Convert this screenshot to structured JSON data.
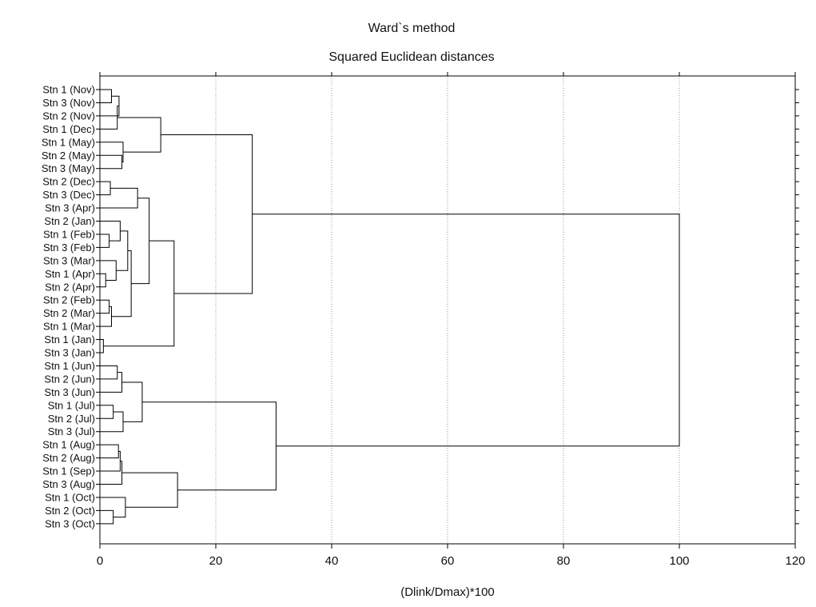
{
  "chart_data": {
    "type": "dendrogram",
    "title": "Ward`s method",
    "subtitle": "Squared Euclidean distances",
    "xlabel": "(Dlink/Dmax)*100",
    "ylabel": "",
    "xlim": [
      0,
      120
    ],
    "xticks": [
      0,
      20,
      40,
      60,
      80,
      100,
      120
    ],
    "grid": "vertical dotted",
    "leaves": [
      "Stn 1 (Nov)",
      "Stn 3 (Nov)",
      "Stn 2 (Nov)",
      "Stn 1 (Dec)",
      "Stn 1 (May)",
      "Stn 2 (May)",
      "Stn 3 (May)",
      "Stn 2 (Dec)",
      "Stn 3 (Dec)",
      "Stn 3 (Apr)",
      "Stn 2 (Jan)",
      "Stn 1 (Feb)",
      "Stn 3 (Feb)",
      "Stn 3 (Mar)",
      "Stn 1 (Apr)",
      "Stn 2 (Apr)",
      "Stn 2 (Feb)",
      "Stn 2 (Mar)",
      "Stn 1 (Mar)",
      "Stn 1 (Jan)",
      "Stn 3 (Jan)",
      "Stn 1 (Jun)",
      "Stn 2 (Jun)",
      "Stn 3 (Jun)",
      "Stn 1 (Jul)",
      "Stn 2 (Jul)",
      "Stn 3 (Jul)",
      "Stn 1 (Aug)",
      "Stn 2 (Aug)",
      "Stn 1 (Sep)",
      "Stn 3 (Aug)",
      "Stn 1 (Oct)",
      "Stn 2 (Oct)",
      "Stn 3 (Oct)"
    ],
    "merges": [
      {
        "id": "a",
        "left": "L0",
        "right": "L1",
        "height": 2.0
      },
      {
        "id": "b",
        "left": "a",
        "right": "L2",
        "height": 3.3
      },
      {
        "id": "c",
        "left": "b",
        "right": "L3",
        "height": 3.0
      },
      {
        "id": "d",
        "left": "L5",
        "right": "L6",
        "height": 3.8
      },
      {
        "id": "e",
        "left": "L4",
        "right": "d",
        "height": 4.0
      },
      {
        "id": "f",
        "left": "c",
        "right": "e",
        "height": 10.5
      },
      {
        "id": "g",
        "left": "L7",
        "right": "L8",
        "height": 1.8
      },
      {
        "id": "h",
        "left": "g",
        "right": "L9",
        "height": 6.5
      },
      {
        "id": "i",
        "left": "L11",
        "right": "L12",
        "height": 1.6
      },
      {
        "id": "j",
        "left": "L10",
        "right": "i",
        "height": 3.5
      },
      {
        "id": "k",
        "left": "L14",
        "right": "L15",
        "height": 1.0
      },
      {
        "id": "l",
        "left": "L13",
        "right": "k",
        "height": 2.8
      },
      {
        "id": "m",
        "left": "j",
        "right": "l",
        "height": 4.8
      },
      {
        "id": "n",
        "left": "L16",
        "right": "L17",
        "height": 1.6
      },
      {
        "id": "o",
        "left": "n",
        "right": "L18",
        "height": 2.0
      },
      {
        "id": "p",
        "left": "m",
        "right": "o",
        "height": 5.4
      },
      {
        "id": "q",
        "left": "h",
        "right": "p",
        "height": 8.5
      },
      {
        "id": "r",
        "left": "L19",
        "right": "L20",
        "height": 0.6
      },
      {
        "id": "s",
        "left": "q",
        "right": "r",
        "height": 12.8
      },
      {
        "id": "t",
        "left": "f",
        "right": "s",
        "height": 26.3
      },
      {
        "id": "u",
        "left": "L21",
        "right": "L22",
        "height": 3.0
      },
      {
        "id": "v",
        "left": "u",
        "right": "L23",
        "height": 3.8
      },
      {
        "id": "w",
        "left": "L24",
        "right": "L25",
        "height": 2.3
      },
      {
        "id": "x",
        "left": "w",
        "right": "L26",
        "height": 4.0
      },
      {
        "id": "y",
        "left": "v",
        "right": "x",
        "height": 7.3
      },
      {
        "id": "z",
        "left": "L27",
        "right": "L28",
        "height": 3.2
      },
      {
        "id": "aa",
        "left": "z",
        "right": "L29",
        "height": 3.5
      },
      {
        "id": "ab",
        "left": "aa",
        "right": "L30",
        "height": 3.8
      },
      {
        "id": "ac",
        "left": "L32",
        "right": "L33",
        "height": 2.3
      },
      {
        "id": "ad",
        "left": "L31",
        "right": "ac",
        "height": 4.4
      },
      {
        "id": "ae",
        "left": "ab",
        "right": "ad",
        "height": 13.4
      },
      {
        "id": "af",
        "left": "y",
        "right": "ae",
        "height": 30.4
      },
      {
        "id": "ag",
        "left": "t",
        "right": "af",
        "height": 100.0
      }
    ]
  }
}
